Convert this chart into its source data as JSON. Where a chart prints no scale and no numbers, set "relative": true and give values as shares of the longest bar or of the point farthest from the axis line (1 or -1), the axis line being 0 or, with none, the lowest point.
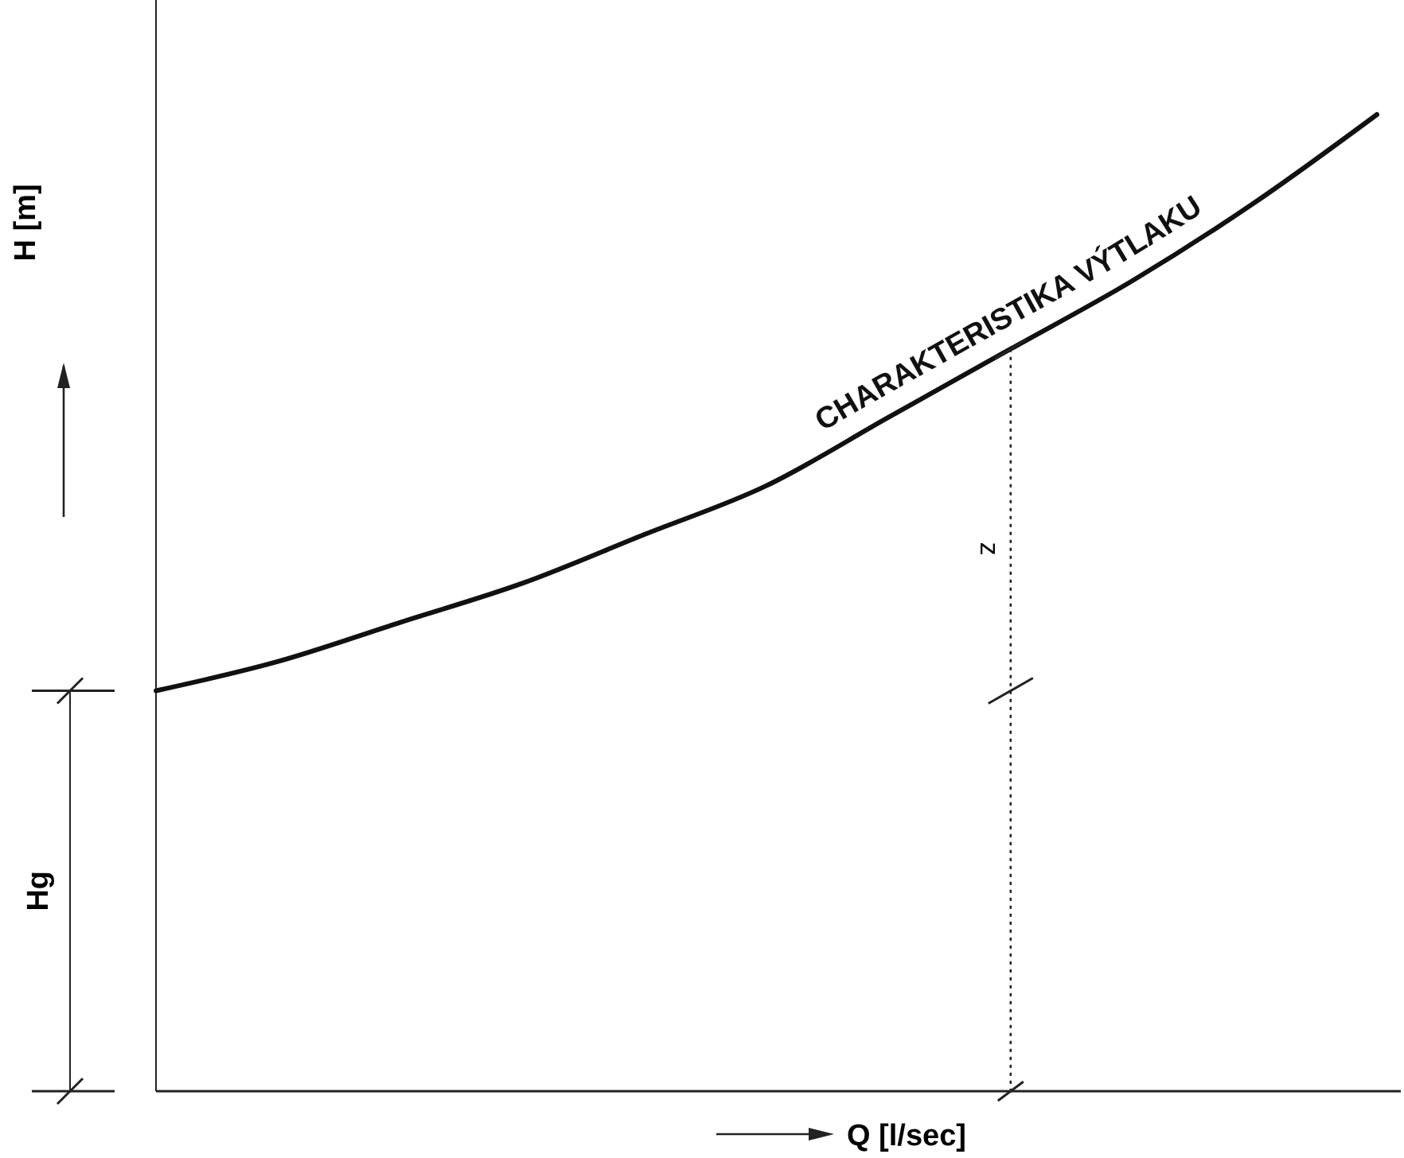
{
  "chart_data": {
    "type": "line",
    "relative": true,
    "xlabel": "Q [l/sec]",
    "ylabel": "H [m]",
    "categories": [
      null,
      null,
      null,
      null,
      null,
      null,
      null,
      null,
      null,
      null,
      null
    ],
    "series": [
      {
        "name": "CHARAKTERISTIKA VÝTLAKU",
        "color": "#111111",
        "values": [
          0.41,
          0.44,
          0.48,
          0.52,
          0.57,
          0.62,
          0.69,
          0.76,
          0.83,
          0.91,
          1.0
        ]
      }
    ],
    "annotations": [
      "Hg",
      "z"
    ],
    "marker": "none",
    "line_style": "solid"
  }
}
